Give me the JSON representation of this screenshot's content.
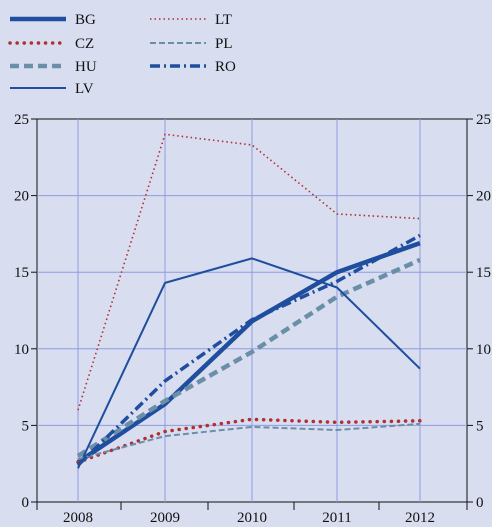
{
  "chart_data": {
    "type": "line",
    "categories": [
      "2008",
      "2009",
      "2010",
      "2011",
      "2012"
    ],
    "ylim": [
      0,
      25
    ],
    "yticks": [
      0,
      5,
      10,
      15,
      20,
      25
    ],
    "grid": true,
    "legend_position": "top-left",
    "series": [
      {
        "name": "BG",
        "values": [
          2.6,
          6.4,
          11.8,
          15.0,
          16.9
        ],
        "color": "#1f4e9e",
        "style": "thick-solid"
      },
      {
        "name": "CZ",
        "values": [
          2.6,
          4.6,
          5.4,
          5.2,
          5.3
        ],
        "color": "#b03030",
        "style": "dotted-thick"
      },
      {
        "name": "HU",
        "values": [
          3.0,
          6.6,
          9.8,
          13.4,
          15.8
        ],
        "color": "#6b8fa8",
        "style": "dashed-thick"
      },
      {
        "name": "LV",
        "values": [
          2.2,
          14.3,
          15.9,
          14.0,
          8.7
        ],
        "color": "#1f4e9e",
        "style": "thin-solid"
      },
      {
        "name": "LT",
        "values": [
          6.0,
          24.0,
          23.3,
          18.8,
          18.5
        ],
        "color": "#b03030",
        "style": "dotted-thin"
      },
      {
        "name": "PL",
        "values": [
          2.8,
          4.3,
          4.9,
          4.7,
          5.1
        ],
        "color": "#6b8fa8",
        "style": "dashed-thin"
      },
      {
        "name": "RO",
        "values": [
          2.4,
          7.9,
          11.9,
          14.4,
          17.4
        ],
        "color": "#1f4e9e",
        "style": "dash-dot"
      }
    ]
  }
}
